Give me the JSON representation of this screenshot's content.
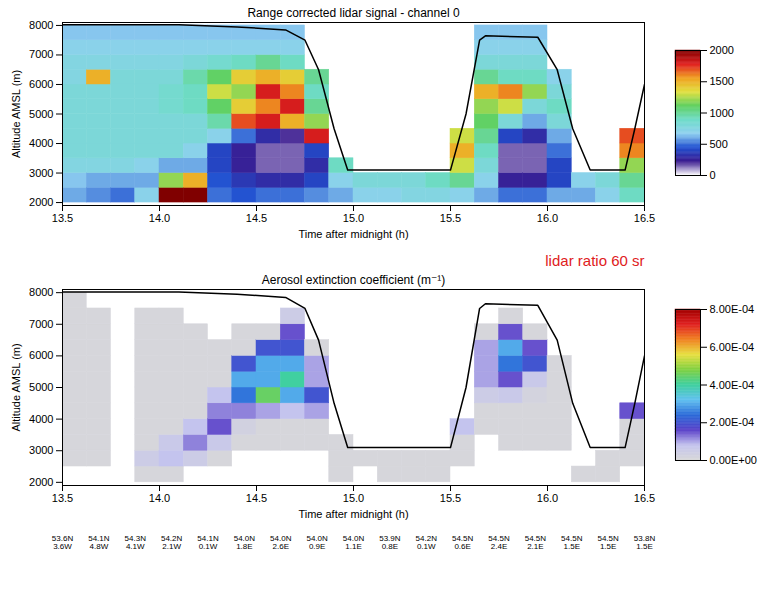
{
  "chart_data": [
    {
      "type": "heatmap",
      "title": "Range corrected lidar signal - channel 0",
      "x_label": "Time after midnight (h)",
      "y_label": "Altitude AMSL (m)",
      "xlim": [
        13.5,
        16.5
      ],
      "xticks": [
        13.5,
        {
          "value": 14,
          "label": "14.0"
        },
        14.5,
        {
          "value": 15,
          "label": "15.0"
        },
        15.5,
        {
          "value": 16,
          "label": "16.0"
        },
        16.5
      ],
      "ylim": [
        1900,
        8100
      ],
      "yticks": [
        2000,
        3000,
        4000,
        5000,
        6000,
        7000,
        8000
      ],
      "x_edges": [
        13.5,
        13.625,
        13.75,
        13.875,
        14.0,
        14.125,
        14.25,
        14.375,
        14.5,
        14.625,
        14.75,
        14.875,
        15.0,
        15.125,
        15.25,
        15.375,
        15.5,
        15.625,
        15.75,
        15.875,
        16.0,
        16.125,
        16.25,
        16.375,
        16.5
      ],
      "y_edges": [
        2000,
        2500,
        3000,
        3500,
        4000,
        4500,
        5000,
        5500,
        6000,
        6500,
        7000,
        7500,
        8000
      ],
      "values": [
        [
          600,
          650,
          750,
          800,
          800,
          800,
          800,
          800,
          750,
          750,
          700,
          650
        ],
        [
          550,
          600,
          750,
          800,
          800,
          800,
          800,
          800,
          1500,
          750,
          700,
          650
        ],
        [
          500,
          600,
          750,
          800,
          800,
          800,
          800,
          800,
          800,
          750,
          700,
          650
        ],
        [
          700,
          600,
          700,
          800,
          800,
          800,
          800,
          800,
          800,
          750,
          700,
          650
        ],
        [
          2200,
          1200,
          600,
          800,
          800,
          800,
          850,
          850,
          800,
          750,
          700,
          650
        ],
        [
          2200,
          1500,
          600,
          700,
          800,
          800,
          900,
          900,
          950,
          800,
          700,
          650
        ],
        [
          500,
          450,
          400,
          400,
          700,
          950,
          1100,
          1300,
          1100,
          850,
          700,
          650
        ],
        [
          450,
          350,
          250,
          250,
          500,
          1700,
          1400,
          1200,
          1400,
          900,
          700,
          650
        ],
        [
          500,
          300,
          150,
          150,
          300,
          1800,
          1600,
          1800,
          1500,
          1000,
          700,
          650
        ],
        [
          500,
          300,
          150,
          150,
          200,
          1500,
          1800,
          1600,
          1400,
          900,
          700,
          650
        ],
        [
          550,
          400,
          300,
          400,
          1800,
          1200,
          1000,
          900,
          1000,
          null,
          null,
          null
        ],
        [
          600,
          700,
          900,
          null,
          null,
          null,
          null,
          null,
          null,
          null,
          null,
          null
        ],
        [
          700,
          800,
          null,
          null,
          null,
          null,
          null,
          null,
          null,
          null,
          null,
          null
        ],
        [
          700,
          800,
          null,
          null,
          null,
          null,
          null,
          null,
          null,
          null,
          null,
          null
        ],
        [
          750,
          800,
          null,
          null,
          null,
          null,
          null,
          null,
          null,
          null,
          null,
          null
        ],
        [
          750,
          900,
          null,
          null,
          null,
          null,
          null,
          null,
          null,
          null,
          null,
          null
        ],
        [
          700,
          1000,
          1300,
          1500,
          1300,
          null,
          null,
          null,
          null,
          null,
          null,
          null
        ],
        [
          600,
          700,
          800,
          900,
          1000,
          1100,
          1200,
          1500,
          1000,
          800,
          700,
          650
        ],
        [
          500,
          250,
          150,
          150,
          400,
          800,
          1300,
          1600,
          900,
          800,
          700,
          650
        ],
        [
          500,
          250,
          150,
          150,
          300,
          600,
          800,
          1200,
          900,
          800,
          700,
          650
        ],
        [
          600,
          400,
          400,
          500,
          600,
          800,
          900,
          800,
          700,
          null,
          null,
          null
        ],
        [
          600,
          700,
          null,
          null,
          null,
          null,
          null,
          null,
          null,
          null,
          null,
          null
        ],
        [
          700,
          800,
          null,
          null,
          null,
          null,
          null,
          null,
          null,
          null,
          null,
          null
        ],
        [
          900,
          1000,
          1200,
          1600,
          1700,
          null,
          null,
          null,
          null,
          null,
          null,
          null
        ]
      ],
      "colorbar_lim": [
        0,
        2000
      ],
      "colorbar_ticks": [
        0,
        500,
        1000,
        1500,
        2000
      ],
      "line": {
        "color": "#000000",
        "x": [
          13.5,
          14.1,
          14.4,
          14.65,
          14.75,
          14.82,
          14.9,
          14.97,
          15.5,
          15.58,
          15.65,
          15.68,
          15.95,
          16.05,
          16.13,
          16.22,
          16.4,
          16.45,
          16.5
        ],
        "y": [
          8020,
          8020,
          7950,
          7850,
          7500,
          6500,
          4500,
          3100,
          3100,
          5000,
          7500,
          7650,
          7600,
          6500,
          4500,
          3100,
          3100,
          4500,
          6000
        ]
      }
    },
    {
      "type": "heatmap",
      "title": "Aerosol extinction coefficient (m⁻¹)",
      "annotation": "lidar ratio 60 sr",
      "x_label": "Time after midnight (h)",
      "y_label": "Altitude AMSL (m)",
      "xlim": [
        13.5,
        16.5
      ],
      "xticks": [
        13.5,
        {
          "value": 14,
          "label": "14.0"
        },
        14.5,
        {
          "value": 15,
          "label": "15.0"
        },
        15.5,
        {
          "value": 16,
          "label": "16.0"
        },
        16.5
      ],
      "ylim": [
        1900,
        8100
      ],
      "yticks": [
        2000,
        3000,
        4000,
        5000,
        6000,
        7000,
        8000
      ],
      "x_edges": [
        13.5,
        13.625,
        13.75,
        13.875,
        14.0,
        14.125,
        14.25,
        14.375,
        14.5,
        14.625,
        14.75,
        14.875,
        15.0,
        15.125,
        15.25,
        15.375,
        15.5,
        15.625,
        15.75,
        15.875,
        16.0,
        16.125,
        16.25,
        16.375,
        16.5
      ],
      "y_edges": [
        2000,
        2500,
        3000,
        3500,
        4000,
        4500,
        5000,
        5500,
        6000,
        6500,
        7000,
        7500,
        8000
      ],
      "values": [
        [
          null,
          1e-05,
          1e-05,
          1e-05,
          1e-05,
          1e-05,
          1e-05,
          1e-05,
          1e-05,
          1e-05,
          1e-05,
          1e-05
        ],
        [
          null,
          1e-05,
          1e-05,
          1e-05,
          1e-05,
          1e-05,
          1e-05,
          1e-05,
          1e-05,
          1e-05,
          1e-05,
          null
        ],
        [
          null,
          null,
          null,
          null,
          null,
          null,
          null,
          null,
          null,
          null,
          null,
          null
        ],
        [
          1e-05,
          5e-05,
          1e-05,
          1e-05,
          1e-05,
          1e-05,
          1e-05,
          1e-05,
          1e-05,
          1e-05,
          1e-05,
          null
        ],
        [
          1e-05,
          8e-05,
          6e-05,
          1e-05,
          1e-05,
          1e-05,
          1e-05,
          1e-05,
          1e-05,
          1e-05,
          1e-05,
          null
        ],
        [
          null,
          5e-05,
          0.00012,
          8e-05,
          1e-05,
          1e-05,
          1e-05,
          1e-05,
          1e-05,
          1e-05,
          null,
          null
        ],
        [
          null,
          1e-05,
          6e-05,
          0.00015,
          0.00012,
          8e-05,
          1e-05,
          1e-05,
          1e-05,
          null,
          null,
          null
        ],
        [
          null,
          null,
          1e-05,
          3e-05,
          0.00012,
          0.00025,
          0.0003,
          0.0002,
          1e-05,
          1e-05,
          null,
          null
        ],
        [
          null,
          null,
          1e-05,
          1e-05,
          0.0001,
          0.00045,
          0.0003,
          0.0003,
          0.0002,
          1e-05,
          null,
          null
        ],
        [
          null,
          null,
          1e-05,
          1e-05,
          8e-05,
          0.0003,
          0.0004,
          0.0003,
          0.0002,
          0.00015,
          5e-05,
          null
        ],
        [
          null,
          null,
          1e-05,
          1e-05,
          0.0001,
          0.0002,
          0.0001,
          0.0001,
          1e-05,
          null,
          null,
          null
        ],
        [
          1e-05,
          1e-05,
          1e-05,
          null,
          null,
          null,
          null,
          null,
          null,
          null,
          null,
          null
        ],
        [
          null,
          1e-05,
          null,
          null,
          null,
          null,
          null,
          null,
          null,
          null,
          null,
          null
        ],
        [
          1e-05,
          1e-05,
          null,
          null,
          null,
          null,
          null,
          null,
          null,
          null,
          null,
          null
        ],
        [
          1e-05,
          1e-05,
          null,
          null,
          null,
          null,
          null,
          null,
          null,
          null,
          null,
          null
        ],
        [
          1e-05,
          1e-05,
          null,
          null,
          null,
          null,
          null,
          null,
          null,
          null,
          null,
          null
        ],
        [
          null,
          1e-05,
          1e-05,
          8e-05,
          null,
          null,
          null,
          null,
          null,
          null,
          null,
          null
        ],
        [
          null,
          null,
          null,
          1e-05,
          1e-05,
          5e-05,
          0.0001,
          0.0001,
          0.0001,
          1e-05,
          null,
          null
        ],
        [
          null,
          null,
          1e-05,
          1e-05,
          1e-05,
          6e-05,
          0.00015,
          0.00025,
          0.0003,
          0.00015,
          1e-05,
          null
        ],
        [
          null,
          null,
          1e-05,
          1e-05,
          1e-05,
          2e-05,
          6e-05,
          0.0002,
          0.00015,
          1e-05,
          null,
          null
        ],
        [
          null,
          null,
          1e-05,
          1e-05,
          1e-05,
          1e-05,
          1e-05,
          1e-05,
          null,
          null,
          null,
          null
        ],
        [
          1e-05,
          null,
          null,
          null,
          null,
          null,
          null,
          null,
          null,
          null,
          null,
          null
        ],
        [
          1e-05,
          1e-05,
          null,
          null,
          null,
          null,
          null,
          null,
          null,
          null,
          null,
          null
        ],
        [
          null,
          1e-05,
          1e-05,
          1e-05,
          0.00015,
          null,
          null,
          null,
          null,
          null,
          null,
          null
        ]
      ],
      "colorbar_lim": [
        0,
        0.0008
      ],
      "colorbar_ticks": [
        {
          "value": 0,
          "label": "0.00E+00"
        },
        {
          "value": 0.0002,
          "label": "2.00E-04"
        },
        {
          "value": 0.0004,
          "label": "4.00E-04"
        },
        {
          "value": 0.0006,
          "label": "6.00E-04"
        },
        {
          "value": 0.0008,
          "label": "8.00E-04"
        }
      ],
      "line": {
        "color": "#000000",
        "x": [
          13.5,
          14.1,
          14.4,
          14.65,
          14.75,
          14.82,
          14.9,
          14.97,
          15.5,
          15.58,
          15.65,
          15.68,
          15.95,
          16.05,
          16.13,
          16.22,
          16.4,
          16.45,
          16.5
        ],
        "y": [
          8020,
          8020,
          7950,
          7850,
          7500,
          6500,
          4500,
          3100,
          3100,
          5000,
          7500,
          7650,
          7600,
          6500,
          4500,
          3100,
          3100,
          4500,
          6000
        ]
      },
      "position_labels": {
        "x": [
          13.5,
          13.6875,
          13.875,
          14.0625,
          14.25,
          14.4375,
          14.625,
          14.8125,
          15.0,
          15.1875,
          15.375,
          15.5625,
          15.75,
          15.9375,
          16.125,
          16.3125,
          16.5
        ],
        "labels": [
          [
            "53.6N",
            "3.6W"
          ],
          [
            "54.1N",
            "4.8W"
          ],
          [
            "54.3N",
            "4.1W"
          ],
          [
            "54.2N",
            "2.1W"
          ],
          [
            "54.1N",
            "0.1W"
          ],
          [
            "54.0N",
            "1.8E"
          ],
          [
            "54.0N",
            "2.6E"
          ],
          [
            "54.0N",
            "0.9E"
          ],
          [
            "54.0N",
            "1.1E"
          ],
          [
            "53.9N",
            "0.8E"
          ],
          [
            "54.2N",
            "0.1W"
          ],
          [
            "54.5N",
            "0.6E"
          ],
          [
            "54.5N",
            "2.4E"
          ],
          [
            "54.5N",
            "2.1E"
          ],
          [
            "54.5N",
            "1.5E"
          ],
          [
            "54.5N",
            "1.5E"
          ],
          [
            "53.8N",
            "1.5E"
          ]
        ]
      }
    }
  ]
}
